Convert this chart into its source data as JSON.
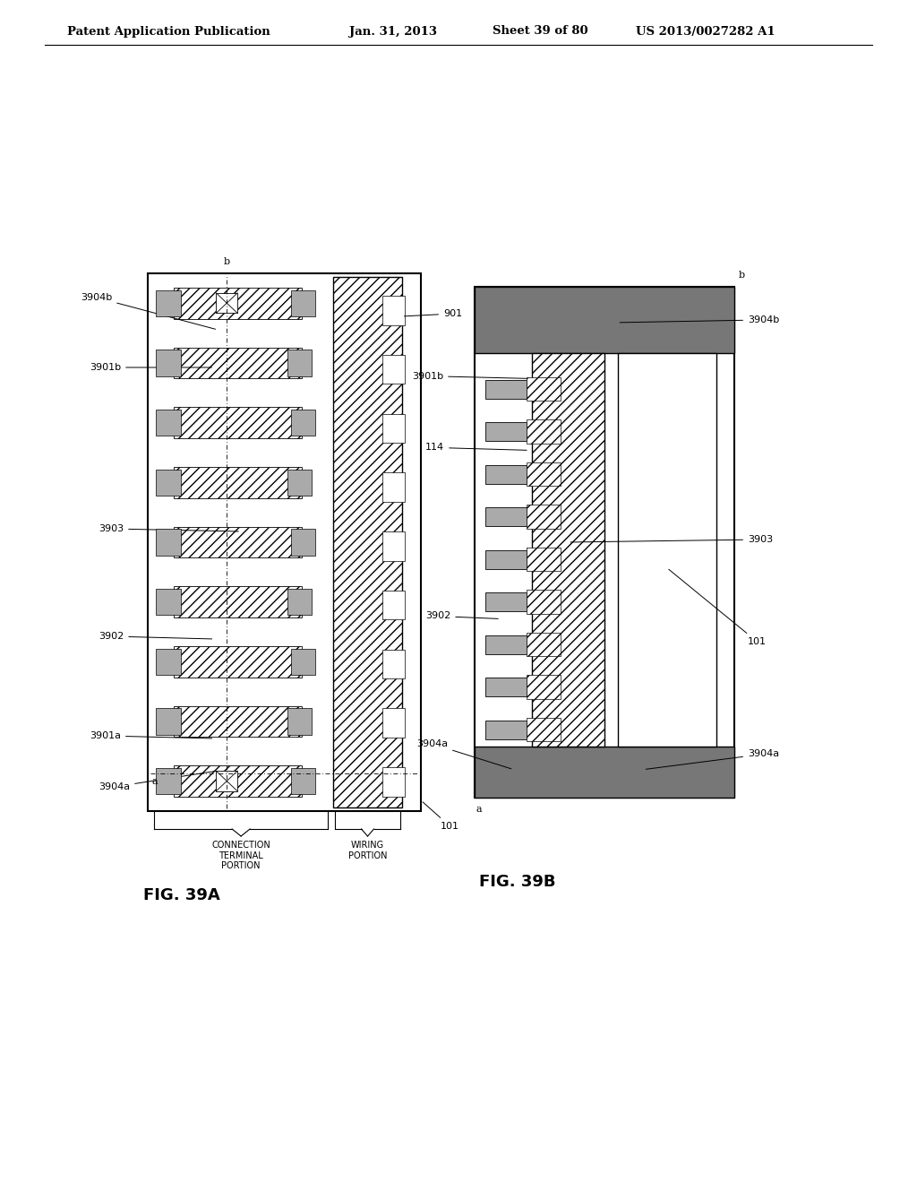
{
  "bg_color": "#ffffff",
  "header_text": "Patent Application Publication",
  "header_date": "Jan. 31, 2013",
  "header_sheet": "Sheet 39 of 80",
  "header_patent": "US 2013/0027282 A1",
  "fig_a_label": "FIG. 39A",
  "fig_b_label": "FIG. 39B",
  "hatch_color": "#888888",
  "gray_color": "#aaaaaa",
  "dark_gray": "#777777",
  "light_gray": "#cccccc"
}
